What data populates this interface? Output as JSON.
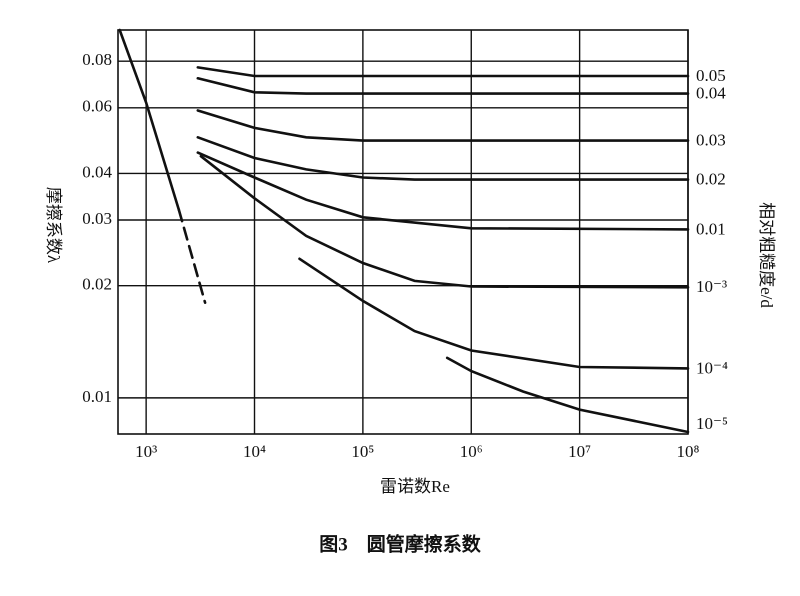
{
  "chart_data": {
    "type": "line",
    "x_label": "雷诺数Re",
    "y_label": "摩擦系数λ",
    "y2_label": "相对粗糙度e/d",
    "caption": "图3　圆管摩擦系数",
    "log_x": true,
    "log_y": true,
    "grid": true,
    "xlim": [
      550,
      100000000
    ],
    "ylim": [
      0.008,
      0.097
    ],
    "xticks": [
      {
        "value": 1000,
        "label": "10³"
      },
      {
        "value": 10000,
        "label": "10⁴"
      },
      {
        "value": 100000,
        "label": "10⁵"
      },
      {
        "value": 1000000,
        "label": "10⁶"
      },
      {
        "value": 10000000,
        "label": "10⁷"
      },
      {
        "value": 100000000,
        "label": "10⁸"
      }
    ],
    "yticks": [
      0.01,
      0.02,
      0.03,
      0.04,
      0.06,
      0.08
    ],
    "series": [
      {
        "color": "#111111",
        "x": [
          570,
          1000,
          2000
        ],
        "values": [
          0.097,
          0.062,
          0.032
        ]
      },
      {
        "color": "#111111",
        "dashed": true,
        "x": [
          2000,
          3500
        ],
        "values": [
          0.032,
          0.018
        ]
      },
      {
        "name": "0.05",
        "color": "#111111",
        "x": [
          3000,
          10000,
          100000000
        ],
        "values": [
          0.077,
          0.073,
          0.073
        ]
      },
      {
        "name": "0.04",
        "color": "#111111",
        "x": [
          3000,
          10000,
          30000,
          100000000
        ],
        "values": [
          0.072,
          0.066,
          0.0655,
          0.0655
        ]
      },
      {
        "name": "0.03",
        "color": "#111111",
        "x": [
          3000,
          10000,
          30000,
          100000,
          100000000
        ],
        "values": [
          0.059,
          0.053,
          0.05,
          0.049,
          0.049
        ]
      },
      {
        "name": "0.02",
        "color": "#111111",
        "x": [
          3000,
          10000,
          30000,
          100000,
          300000,
          100000000
        ],
        "values": [
          0.05,
          0.044,
          0.041,
          0.039,
          0.0385,
          0.0385
        ]
      },
      {
        "name": "0.01",
        "color": "#111111",
        "x": [
          3000,
          10000,
          30000,
          100000,
          1000000,
          100000000
        ],
        "values": [
          0.0455,
          0.039,
          0.034,
          0.0305,
          0.0285,
          0.0283
        ]
      },
      {
        "name": "10⁻³",
        "color": "#111111",
        "x": [
          3200,
          10000,
          30000,
          100000,
          300000,
          1000000,
          100000000
        ],
        "values": [
          0.0445,
          0.0343,
          0.0272,
          0.023,
          0.0206,
          0.0199,
          0.0198
        ]
      },
      {
        "name": "10⁻⁴",
        "color": "#111111",
        "x": [
          26000,
          100000,
          300000,
          1000000,
          10000000,
          100000000
        ],
        "values": [
          0.0236,
          0.0182,
          0.0151,
          0.0134,
          0.0121,
          0.012
        ]
      },
      {
        "name": "10⁻⁵",
        "color": "#111111",
        "x": [
          600000,
          1000000,
          3000000,
          10000000,
          100000000
        ],
        "values": [
          0.0128,
          0.0118,
          0.0104,
          0.0093,
          0.0081
        ]
      }
    ]
  }
}
